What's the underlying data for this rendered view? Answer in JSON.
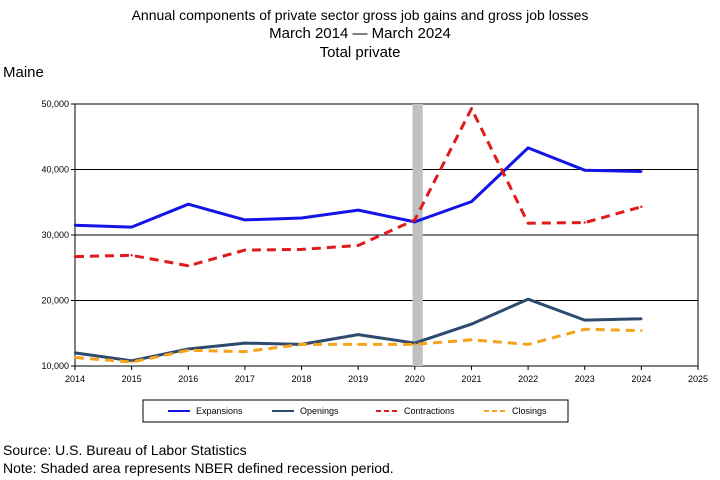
{
  "title_lines": [
    "Annual components of private sector gross job gains and gross job losses",
    "March 2014 — March 2024",
    "Total private"
  ],
  "region_label": "Maine",
  "source_note": "Source: U.S. Bureau of Labor Statistics",
  "recession_note": "Note: Shaded area represents NBER defined recession period.",
  "chart_data": {
    "type": "line",
    "x": [
      2014,
      2015,
      2016,
      2017,
      2018,
      2019,
      2020,
      2021,
      2022,
      2023,
      2024
    ],
    "x_ticks": [
      2014,
      2015,
      2016,
      2017,
      2018,
      2019,
      2020,
      2021,
      2022,
      2023,
      2024,
      2025
    ],
    "x_tick_labels": [
      "2014",
      "2015",
      "2016",
      "2017",
      "2018",
      "2019",
      "2020",
      "2021",
      "2022",
      "2023",
      "2024",
      "2025"
    ],
    "xlim": [
      2014,
      2025
    ],
    "ylim": [
      10000,
      50000
    ],
    "y_ticks": [
      10000,
      20000,
      30000,
      40000,
      50000
    ],
    "y_tick_labels": [
      "10,000",
      "20,000",
      "30,000",
      "40,000",
      "50,000"
    ],
    "grid": "horizontal",
    "legend_position": "bottom",
    "recession_shade": {
      "x_start": 2019.96,
      "x_end": 2020.14,
      "color": "#c0c0c0"
    },
    "series": [
      {
        "name": "Expansions",
        "color": "#1414e6",
        "style": "solid",
        "values": [
          31500,
          31200,
          34700,
          32300,
          32600,
          33800,
          32000,
          35100,
          43300,
          39900,
          39700
        ]
      },
      {
        "name": "Openings",
        "color": "#2e4a6e",
        "style": "solid",
        "values": [
          12000,
          10800,
          12600,
          13500,
          13300,
          14800,
          13500,
          16400,
          20200,
          17000,
          17200
        ]
      },
      {
        "name": "Contractions",
        "color": "#e01b1b",
        "style": "dashed",
        "values": [
          26700,
          26900,
          25300,
          27700,
          27800,
          28400,
          32300,
          49300,
          31800,
          31900,
          34300
        ]
      },
      {
        "name": "Closings",
        "color": "#f5a31a",
        "style": "dashed",
        "values": [
          11300,
          10600,
          12400,
          12200,
          13300,
          13300,
          13300,
          14000,
          13300,
          15600,
          15400
        ]
      }
    ]
  }
}
